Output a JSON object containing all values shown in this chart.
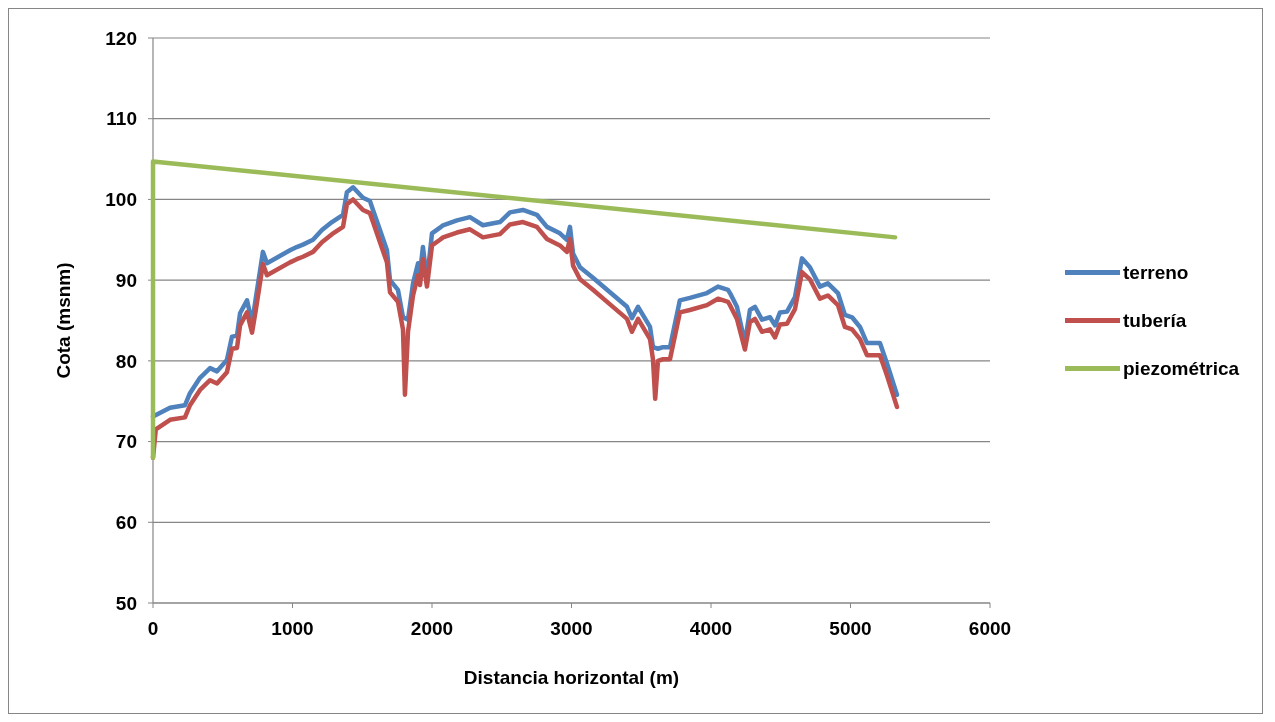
{
  "chart_data": {
    "type": "line",
    "xlabel": "Distancia horizontal (m)",
    "ylabel": "Cota (msnm)",
    "xlim": [
      0,
      6000
    ],
    "xticks": [
      0,
      1000,
      2000,
      3000,
      4000,
      5000,
      6000
    ],
    "ylim": [
      50,
      120
    ],
    "yticks": [
      50,
      60,
      70,
      80,
      90,
      100,
      110,
      120
    ],
    "grid": "y",
    "legend": "right",
    "marker": "none",
    "line_style": "solid",
    "series": [
      {
        "name": "terreno",
        "color": "#4f81bd",
        "x": [
          0,
          122,
          229,
          265,
          337,
          409,
          459,
          530,
          566,
          602,
          624,
          674,
          710,
          738,
          788,
          817,
          982,
          1030,
          1075,
          1147,
          1211,
          1283,
          1362,
          1390,
          1434,
          1505,
          1555,
          1577,
          1627,
          1677,
          1699,
          1756,
          1792,
          1828,
          1864,
          1900,
          1914,
          1935,
          1964,
          2000,
          2057,
          2079,
          2179,
          2272,
          2365,
          2487,
          2559,
          2652,
          2752,
          2824,
          2917,
          2967,
          2989,
          3011,
          3061,
          3154,
          3276,
          3398,
          3433,
          3477,
          3563,
          3584,
          3620,
          3656,
          3706,
          3777,
          3849,
          3971,
          4050,
          4122,
          4136,
          4186,
          4243,
          4279,
          4315,
          4365,
          4423,
          4459,
          4494,
          4545,
          4602,
          4652,
          4709,
          4781,
          4838,
          4910,
          4960,
          5011,
          5068,
          5118,
          5211,
          5261,
          5333
        ],
        "values": [
          73.1,
          74.2,
          74.5,
          76.0,
          77.9,
          79.1,
          78.7,
          80.1,
          83.0,
          83.1,
          85.9,
          87.5,
          84.7,
          87.9,
          93.5,
          92.1,
          93.7,
          94.1,
          94.4,
          95.0,
          96.2,
          97.2,
          98.1,
          100.9,
          101.5,
          100.2,
          99.8,
          98.7,
          96.2,
          93.7,
          90.0,
          88.8,
          85.4,
          85.1,
          89.6,
          92.1,
          90.9,
          94.1,
          90.0,
          95.8,
          96.5,
          96.8,
          97.4,
          97.8,
          96.8,
          97.2,
          98.4,
          98.7,
          98.1,
          96.6,
          95.8,
          95.0,
          96.6,
          93.3,
          91.6,
          90.3,
          88.5,
          86.7,
          85.3,
          86.7,
          84.2,
          81.7,
          81.5,
          81.7,
          81.7,
          87.5,
          87.8,
          88.4,
          89.2,
          88.8,
          88.4,
          86.7,
          82.2,
          86.3,
          86.7,
          85.1,
          85.4,
          84.4,
          86.0,
          86.1,
          87.9,
          92.7,
          91.6,
          89.2,
          89.6,
          88.4,
          85.7,
          85.4,
          84.2,
          82.2,
          82.2,
          79.7,
          75.8
        ]
      },
      {
        "name": "tubería",
        "color": "#c0504d",
        "x": [
          0,
          20,
          122,
          229,
          265,
          337,
          409,
          459,
          530,
          566,
          602,
          624,
          674,
          710,
          738,
          788,
          817,
          982,
          1030,
          1075,
          1147,
          1211,
          1283,
          1362,
          1390,
          1434,
          1505,
          1555,
          1577,
          1627,
          1677,
          1699,
          1756,
          1792,
          1806,
          1828,
          1864,
          1900,
          1914,
          1935,
          1964,
          2000,
          2057,
          2079,
          2179,
          2272,
          2365,
          2487,
          2559,
          2652,
          2752,
          2824,
          2917,
          2967,
          2989,
          3011,
          3061,
          3154,
          3276,
          3398,
          3433,
          3477,
          3563,
          3584,
          3600,
          3620,
          3656,
          3706,
          3777,
          3849,
          3971,
          4050,
          4122,
          4136,
          4186,
          4243,
          4279,
          4315,
          4365,
          4423,
          4459,
          4494,
          4545,
          4602,
          4652,
          4709,
          4781,
          4838,
          4910,
          4960,
          5011,
          5068,
          5118,
          5211,
          5261,
          5333
        ],
        "values": [
          68,
          71.5,
          72.7,
          73.0,
          74.5,
          76.4,
          77.6,
          77.2,
          78.6,
          81.5,
          81.6,
          84.4,
          86.0,
          83.5,
          86.4,
          92.0,
          90.6,
          92.2,
          92.6,
          92.9,
          93.5,
          94.7,
          95.7,
          96.6,
          99.4,
          100.0,
          98.7,
          98.3,
          97.2,
          94.7,
          92.2,
          88.5,
          87.3,
          83.9,
          75.8,
          83.6,
          88.1,
          90.6,
          89.4,
          92.6,
          89.2,
          94.3,
          95.0,
          95.3,
          95.9,
          96.3,
          95.3,
          95.7,
          96.9,
          97.2,
          96.6,
          95.1,
          94.3,
          93.5,
          95.1,
          91.8,
          90.1,
          88.8,
          87.0,
          85.2,
          83.6,
          85.2,
          82.7,
          80.2,
          75.3,
          80.0,
          80.2,
          80.2,
          86.0,
          86.3,
          86.9,
          87.7,
          87.3,
          86.9,
          85.2,
          81.4,
          84.8,
          85.2,
          83.6,
          83.9,
          82.9,
          84.5,
          84.6,
          86.4,
          91.0,
          90.1,
          87.7,
          88.1,
          86.9,
          84.2,
          83.9,
          82.7,
          80.7,
          80.7,
          78.2,
          74.3
        ]
      },
      {
        "name": "piezométrica",
        "color": "#9bbb59",
        "x": [
          0,
          0,
          5320
        ],
        "values": [
          68,
          104.7,
          95.3
        ]
      }
    ]
  }
}
